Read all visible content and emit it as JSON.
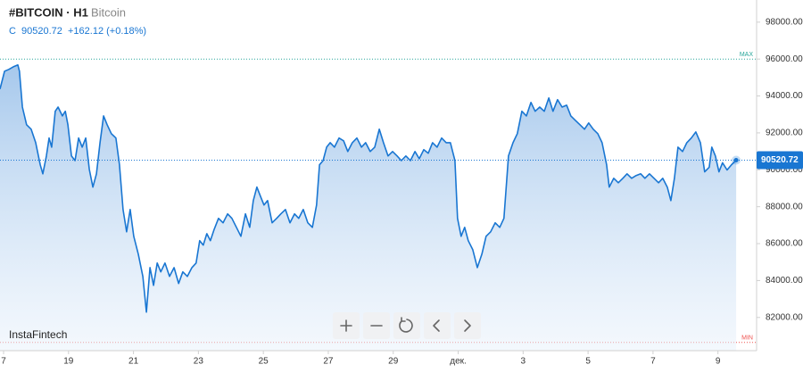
{
  "chart_data": {
    "type": "area",
    "title": "#BITCOIN · H1",
    "subtitle": "Bitcoin",
    "close_label": "C",
    "last_price": 90520.72,
    "change_text": "+162.12 (+0.18%)",
    "watermark": "InstaFintech",
    "max_line": {
      "label": "MAX",
      "value": 96000
    },
    "min_line": {
      "label": "MIN",
      "value": 80650
    },
    "xlim": [
      16.89,
      40.19
    ],
    "ylim": [
      80200,
      99200
    ],
    "xticks": [
      {
        "value": 17,
        "label": "7"
      },
      19,
      21,
      23,
      25,
      27,
      29,
      {
        "value": 31,
        "label": "дек."
      },
      {
        "value": 33,
        "label": "3"
      },
      {
        "value": 35,
        "label": "5"
      },
      {
        "value": 37,
        "label": "7"
      },
      {
        "value": 39,
        "label": "9"
      }
    ],
    "yticks": [
      {
        "value": 82000,
        "label": "82000.00"
      },
      {
        "value": 84000,
        "label": "84000.00"
      },
      {
        "value": 86000,
        "label": "86000.00"
      },
      {
        "value": 88000,
        "label": "88000.00"
      },
      {
        "value": 90000,
        "label": "90000.00"
      },
      {
        "value": 92000,
        "label": "92000.00"
      },
      {
        "value": 94000,
        "label": "94000.00"
      },
      {
        "value": 96000,
        "label": "96000.00"
      },
      {
        "value": 98000,
        "label": "98000.00"
      }
    ],
    "series": [
      {
        "color": "#1976d2",
        "x": [
          16.89,
          17.03,
          17.16,
          17.3,
          17.44,
          17.49,
          17.58,
          17.71,
          17.85,
          17.99,
          18.13,
          18.21,
          18.32,
          18.4,
          18.48,
          18.59,
          18.68,
          18.81,
          18.9,
          18.98,
          19.09,
          19.2,
          19.31,
          19.42,
          19.53,
          19.64,
          19.75,
          19.86,
          19.97,
          20.08,
          20.19,
          20.32,
          20.46,
          20.57,
          20.68,
          20.79,
          20.9,
          21.01,
          21.15,
          21.29,
          21.4,
          21.51,
          21.62,
          21.73,
          21.84,
          21.97,
          22.11,
          22.25,
          22.39,
          22.52,
          22.66,
          22.8,
          22.93,
          23.04,
          23.15,
          23.26,
          23.37,
          23.48,
          23.62,
          23.76,
          23.9,
          24.03,
          24.17,
          24.31,
          24.45,
          24.58,
          24.69,
          24.8,
          24.91,
          25.02,
          25.13,
          25.27,
          25.41,
          25.54,
          25.68,
          25.82,
          25.96,
          26.09,
          26.23,
          26.37,
          26.51,
          26.64,
          26.73,
          26.84,
          26.95,
          27.06,
          27.19,
          27.33,
          27.47,
          27.6,
          27.74,
          27.88,
          28.02,
          28.15,
          28.29,
          28.43,
          28.57,
          28.7,
          28.84,
          28.98,
          29.12,
          29.25,
          29.39,
          29.53,
          29.67,
          29.8,
          29.94,
          30.08,
          30.21,
          30.35,
          30.49,
          30.63,
          30.76,
          30.9,
          30.98,
          31.09,
          31.2,
          31.31,
          31.45,
          31.59,
          31.73,
          31.86,
          32.0,
          32.14,
          32.28,
          32.41,
          32.55,
          32.69,
          32.82,
          32.96,
          33.1,
          33.24,
          33.37,
          33.51,
          33.65,
          33.79,
          33.92,
          34.06,
          34.2,
          34.34,
          34.47,
          34.61,
          34.75,
          34.89,
          35.02,
          35.16,
          35.3,
          35.43,
          35.57,
          35.65,
          35.79,
          35.93,
          36.07,
          36.2,
          36.34,
          36.48,
          36.62,
          36.75,
          36.89,
          37.03,
          37.17,
          37.3,
          37.44,
          37.55,
          37.66,
          37.77,
          37.91,
          38.04,
          38.18,
          38.32,
          38.46,
          38.59,
          38.73,
          38.81,
          38.92,
          39.03,
          39.14,
          39.28,
          39.42,
          39.56
        ],
        "values": [
          94375,
          95340,
          95440,
          95580,
          95680,
          95340,
          93400,
          92440,
          92200,
          91470,
          90270,
          89780,
          90750,
          91720,
          91230,
          93170,
          93400,
          92920,
          93170,
          92440,
          90750,
          90500,
          91720,
          91230,
          91720,
          90020,
          89060,
          89780,
          91470,
          92920,
          92440,
          91960,
          91720,
          90270,
          87850,
          86640,
          87850,
          86400,
          85430,
          84220,
          82290,
          84700,
          83740,
          84950,
          84470,
          84950,
          84220,
          84700,
          83840,
          84470,
          84220,
          84700,
          84950,
          86160,
          85920,
          86540,
          86160,
          86740,
          87370,
          87130,
          87610,
          87370,
          86880,
          86400,
          87610,
          86880,
          88330,
          89060,
          88570,
          88090,
          88330,
          87130,
          87370,
          87610,
          87850,
          87130,
          87610,
          87370,
          87850,
          87130,
          86880,
          88090,
          90270,
          90500,
          91230,
          91470,
          91230,
          91720,
          91570,
          90990,
          91470,
          91720,
          91230,
          91470,
          90990,
          91230,
          92200,
          91470,
          90750,
          90990,
          90750,
          90500,
          90750,
          90500,
          90990,
          90600,
          91090,
          90900,
          91470,
          91230,
          91720,
          91470,
          91470,
          90500,
          87370,
          86400,
          86880,
          86160,
          85670,
          84700,
          85430,
          86400,
          86640,
          87130,
          86880,
          87370,
          90750,
          91470,
          91960,
          93170,
          92920,
          93650,
          93170,
          93400,
          93170,
          93890,
          93170,
          93800,
          93400,
          93500,
          92920,
          92680,
          92440,
          92200,
          92540,
          92200,
          91960,
          91470,
          90270,
          89060,
          89540,
          89300,
          89540,
          89780,
          89540,
          89690,
          89780,
          89540,
          89780,
          89540,
          89300,
          89540,
          89060,
          88330,
          89540,
          91230,
          90990,
          91470,
          91720,
          92050,
          91470,
          89890,
          90140,
          91230,
          90750,
          89890,
          90380,
          89990,
          90280,
          90520.72
        ]
      }
    ]
  }
}
